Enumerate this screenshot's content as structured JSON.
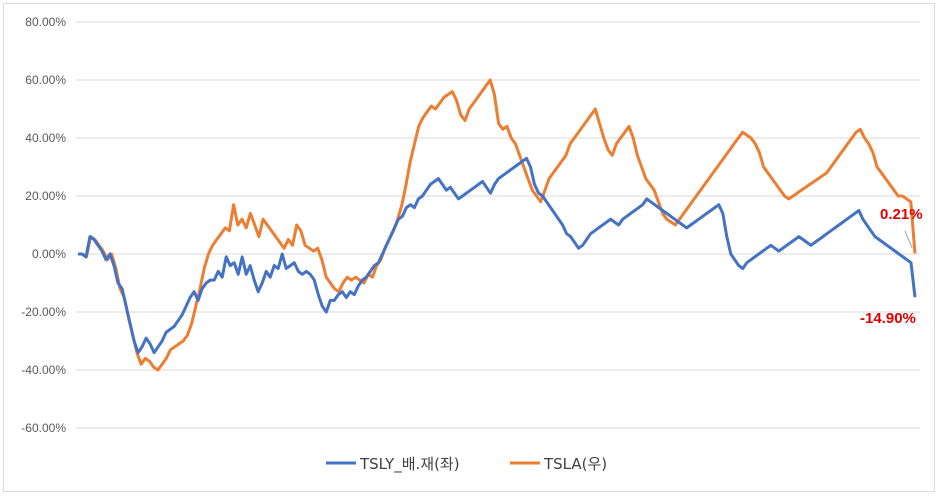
{
  "chart_data": {
    "type": "line",
    "title": "",
    "xlabel": "",
    "ylabel": "",
    "ylim": [
      -60,
      80
    ],
    "y_ticks": [
      "80.00%",
      "60.00%",
      "40.00%",
      "20.00%",
      "0.00%",
      "-20.00%",
      "-40.00%",
      "-60.00%"
    ],
    "grid": true,
    "legend_position": "bottom",
    "series": [
      {
        "name": "TSLY_배.재(좌)",
        "color": "#4472c4",
        "values": [
          0,
          0,
          -1,
          6,
          5,
          3,
          1,
          -2,
          0,
          -4,
          -10,
          -12,
          -18,
          -24,
          -30,
          -34,
          -32,
          -29,
          -31,
          -34,
          -32,
          -30,
          -27,
          -26,
          -25,
          -23,
          -21,
          -18,
          -15,
          -13,
          -16,
          -12,
          -10,
          -9,
          -9,
          -6,
          -8,
          -1,
          -4,
          -3,
          -7,
          -1,
          -7,
          -4,
          -9,
          -13,
          -10,
          -6,
          -8,
          -4,
          -5,
          0,
          -5,
          -4,
          -3,
          -6,
          -7,
          -6,
          -7,
          -9,
          -14,
          -18,
          -20,
          -16,
          -16,
          -14,
          -13,
          -15,
          -13,
          -14,
          -11,
          -9,
          -8,
          -6,
          -4,
          -3,
          0,
          3,
          6,
          9,
          12,
          13,
          16,
          17,
          16,
          19,
          20,
          22,
          24,
          25,
          26,
          24,
          22,
          23,
          21,
          19,
          20,
          21,
          22,
          23,
          24,
          25,
          23,
          21,
          24,
          26,
          27,
          28,
          29,
          30,
          31,
          32,
          33,
          30,
          24,
          21,
          20,
          18,
          16,
          14,
          12,
          10,
          7,
          6,
          4,
          2,
          3,
          5,
          7,
          8,
          9,
          10,
          11,
          12,
          11,
          10,
          12,
          13,
          14,
          15,
          16,
          17,
          19,
          18,
          17,
          16,
          15,
          14,
          13,
          12,
          11,
          10,
          9,
          10,
          11,
          12,
          13,
          14,
          15,
          16,
          17,
          14,
          6,
          0,
          -2,
          -4,
          -5,
          -3,
          -2,
          -1,
          0,
          1,
          2,
          3,
          2,
          1,
          2,
          3,
          4,
          5,
          6,
          5,
          4,
          3,
          4,
          5,
          6,
          7,
          8,
          9,
          10,
          11,
          12,
          13,
          14,
          15,
          12,
          10,
          8,
          6,
          5,
          4,
          3,
          2,
          1,
          0,
          -1,
          -2,
          -3,
          -14.9
        ]
      },
      {
        "name": "TSLA(우)",
        "color": "#ed7d31",
        "values": [
          0,
          0,
          -1,
          6,
          5,
          3,
          1,
          -2,
          0,
          -5,
          -12,
          -15,
          -22,
          -28,
          -34,
          -38,
          -36,
          -37,
          -39,
          -40,
          -38,
          -36,
          -33,
          -32,
          -31,
          -30,
          -28,
          -24,
          -18,
          -12,
          -5,
          0,
          3,
          5,
          7,
          9,
          8,
          17,
          10,
          12,
          9,
          14,
          10,
          6,
          12,
          10,
          8,
          6,
          4,
          2,
          5,
          3,
          10,
          8,
          3,
          2,
          1,
          2,
          -2,
          -8,
          -10,
          -12,
          -13,
          -10,
          -8,
          -9,
          -8,
          -9,
          -10,
          -7,
          -8,
          -4,
          -2,
          2,
          5,
          8,
          12,
          17,
          24,
          32,
          38,
          44,
          47,
          49,
          51,
          50,
          52,
          54,
          55,
          56,
          53,
          48,
          46,
          50,
          52,
          54,
          56,
          58,
          60,
          55,
          45,
          43,
          44,
          40,
          38,
          34,
          30,
          26,
          22,
          20,
          18,
          22,
          26,
          28,
          30,
          32,
          34,
          38,
          40,
          42,
          44,
          46,
          48,
          50,
          45,
          40,
          36,
          34,
          38,
          40,
          42,
          44,
          40,
          34,
          30,
          26,
          24,
          22,
          18,
          14,
          12,
          11,
          10,
          12,
          14,
          16,
          18,
          20,
          22,
          24,
          26,
          28,
          30,
          32,
          34,
          36,
          38,
          40,
          42,
          41,
          40,
          38,
          35,
          30,
          28,
          26,
          24,
          22,
          20,
          19,
          20,
          21,
          22,
          23,
          24,
          25,
          26,
          27,
          28,
          30,
          32,
          34,
          36,
          38,
          40,
          42,
          43,
          40,
          38,
          35,
          30,
          28,
          26,
          24,
          22,
          20,
          20,
          19,
          18,
          0.21
        ]
      }
    ]
  },
  "annotations": {
    "tsla_end": "0.21%",
    "tsly_end": "-14.90%"
  },
  "legend": {
    "tsly": "TSLY_배.재(좌)",
    "tsla": "TSLA(우)"
  }
}
